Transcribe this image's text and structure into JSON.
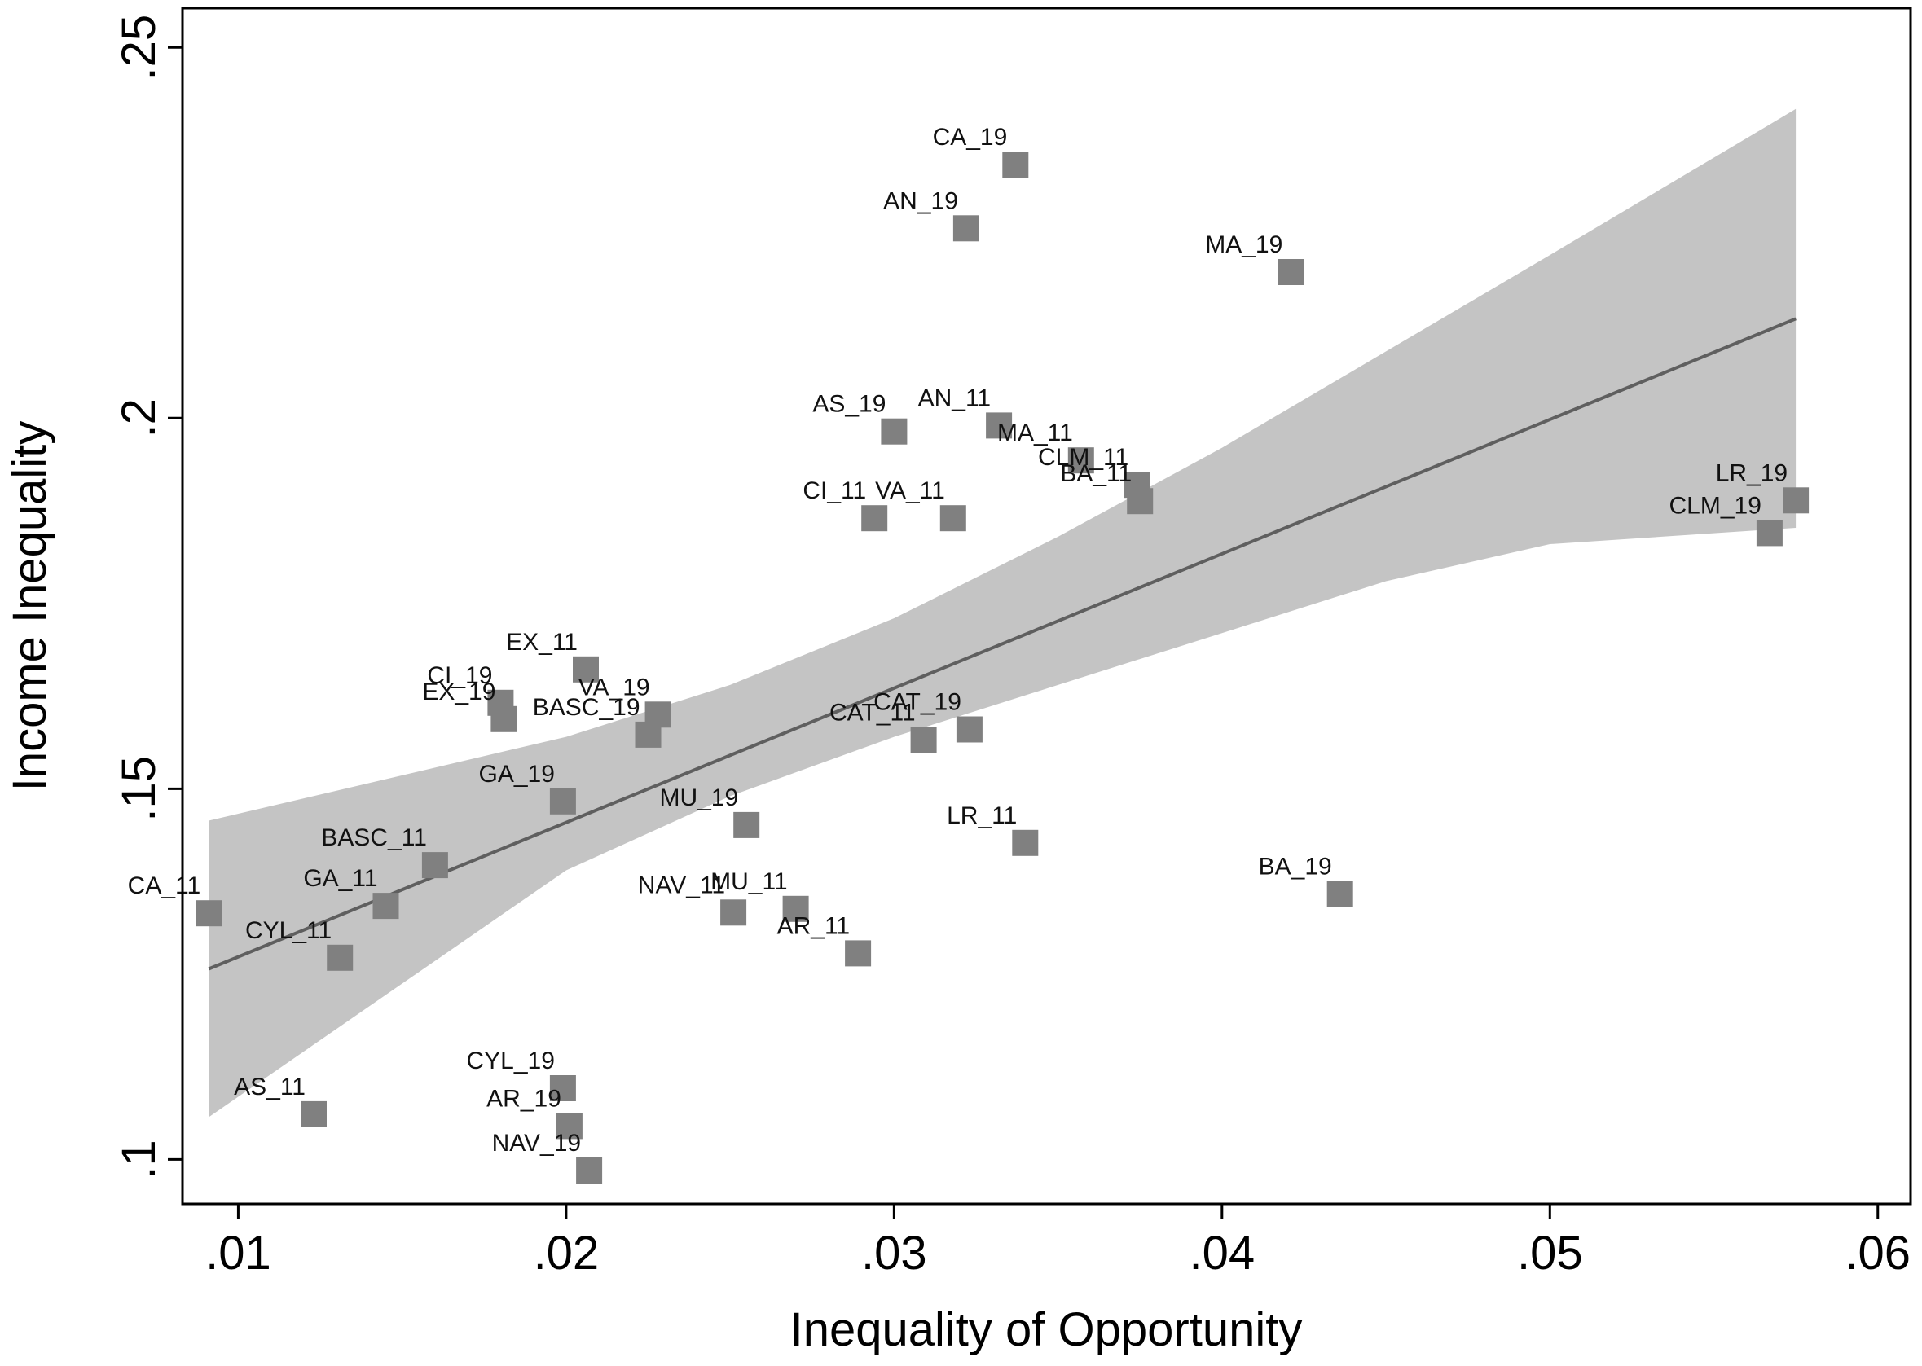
{
  "chart_data": {
    "type": "scatter",
    "title": "",
    "xlabel": "Inequality of Opportunity",
    "ylabel": "Income Inequality",
    "xlim": [
      0.0083,
      0.061
    ],
    "ylim": [
      0.094,
      0.2553
    ],
    "xticks": [
      0.01,
      0.02,
      0.03,
      0.04,
      0.05,
      0.06
    ],
    "xtick_labels": [
      ".01",
      ".02",
      ".03",
      ".04",
      ".05",
      ".06"
    ],
    "yticks": [
      0.1,
      0.15,
      0.2,
      0.25
    ],
    "ytick_labels": [
      ".1",
      ".15",
      ".2",
      ".25"
    ],
    "grid": false,
    "marker_color": "#808080",
    "band_color": "#c4c4c4",
    "fit_color": "#5f5f5f",
    "points": [
      {
        "label": "CA_19",
        "x": 0.0337,
        "y": 0.2342
      },
      {
        "label": "AN_19",
        "x": 0.0322,
        "y": 0.2256
      },
      {
        "label": "MA_19",
        "x": 0.0421,
        "y": 0.2197
      },
      {
        "label": "AS_19",
        "x": 0.03,
        "y": 0.1982
      },
      {
        "label": "AN_11",
        "x": 0.0332,
        "y": 0.199
      },
      {
        "label": "MA_11",
        "x": 0.0357,
        "y": 0.1943
      },
      {
        "label": "CLM_11",
        "x": 0.0374,
        "y": 0.191
      },
      {
        "label": "BA_11",
        "x": 0.0375,
        "y": 0.1888
      },
      {
        "label": "CI_11",
        "x": 0.0294,
        "y": 0.1865
      },
      {
        "label": "VA_11",
        "x": 0.0318,
        "y": 0.1865
      },
      {
        "label": "LR_19",
        "x": 0.0575,
        "y": 0.1889
      },
      {
        "label": "CLM_19",
        "x": 0.0567,
        "y": 0.1845
      },
      {
        "label": "EX_11",
        "x": 0.0206,
        "y": 0.1661
      },
      {
        "label": "CI_19",
        "x": 0.018,
        "y": 0.1616
      },
      {
        "label": "EX_19",
        "x": 0.0181,
        "y": 0.1594
      },
      {
        "label": "VA_19",
        "x": 0.0228,
        "y": 0.16
      },
      {
        "label": "BASC_19",
        "x": 0.0225,
        "y": 0.1573
      },
      {
        "label": "CAT_19",
        "x": 0.0323,
        "y": 0.158
      },
      {
        "label": "CAT_11",
        "x": 0.0309,
        "y": 0.1566
      },
      {
        "label": "GA_19",
        "x": 0.0199,
        "y": 0.1483
      },
      {
        "label": "MU_19",
        "x": 0.0255,
        "y": 0.1451
      },
      {
        "label": "LR_11",
        "x": 0.034,
        "y": 0.1427
      },
      {
        "label": "BASC_11",
        "x": 0.016,
        "y": 0.1397
      },
      {
        "label": "BA_19",
        "x": 0.0436,
        "y": 0.1358
      },
      {
        "label": "GA_11",
        "x": 0.0145,
        "y": 0.1342
      },
      {
        "label": "CA_11",
        "x": 0.0091,
        "y": 0.1332
      },
      {
        "label": "NAV_11",
        "x": 0.0251,
        "y": 0.1333
      },
      {
        "label": "MU_11",
        "x": 0.027,
        "y": 0.1338
      },
      {
        "label": "CYL_11",
        "x": 0.0131,
        "y": 0.1272
      },
      {
        "label": "AR_11",
        "x": 0.0289,
        "y": 0.1278
      },
      {
        "label": "CYL_19",
        "x": 0.0199,
        "y": 0.1096
      },
      {
        "label": "AS_11",
        "x": 0.0123,
        "y": 0.1061
      },
      {
        "label": "AR_19",
        "x": 0.0201,
        "y": 0.1045
      },
      {
        "label": "NAV_19",
        "x": 0.0207,
        "y": 0.0985
      }
    ],
    "fit_line": {
      "x": [
        0.0091,
        0.0575
      ],
      "y": [
        0.1257,
        0.2134
      ]
    },
    "confidence_band": {
      "x": [
        0.0091,
        0.02,
        0.025,
        0.03,
        0.035,
        0.04,
        0.045,
        0.05,
        0.0575
      ],
      "upper": [
        0.1457,
        0.157,
        0.164,
        0.173,
        0.184,
        0.196,
        0.209,
        0.222,
        0.2417
      ],
      "lower": [
        0.1057,
        0.139,
        0.149,
        0.157,
        0.164,
        0.171,
        0.178,
        0.183,
        0.1852
      ]
    }
  }
}
